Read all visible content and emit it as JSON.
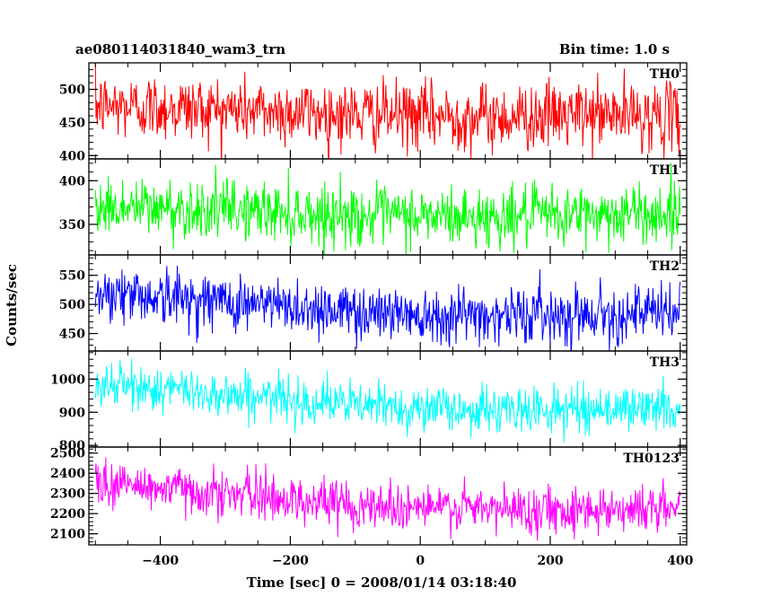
{
  "header": {
    "left_title": "ae080114031840_wam3_trn",
    "right_title": "Bin time: 1.0 s"
  },
  "chart_data": {
    "type": "line",
    "title": "ae080114031840_wam3_trn",
    "subtitle": "Bin time: 1.0 s",
    "xlabel": "Time [sec] 0 = 2008/01/14 03:18:40",
    "ylabel": "Counts/sec",
    "xlim": [
      -510,
      410
    ],
    "x_ticks": [
      -400,
      -200,
      0,
      200,
      400
    ],
    "x_tick_labels": [
      "−400",
      "−200",
      "0",
      "200",
      "400"
    ],
    "x_range_data": [
      -500,
      400
    ],
    "bin_time": 1.0,
    "grid": false,
    "panels": [
      {
        "name": "TH0",
        "color": "#ff0000",
        "ylim": [
          395,
          540
        ],
        "y_ticks": [
          400,
          450,
          500
        ],
        "y_tick_labels": [
          "400",
          "450",
          "500"
        ],
        "trend": [
          [
            -500,
            475
          ],
          [
            -300,
            470
          ],
          [
            -100,
            462
          ],
          [
            100,
            458
          ],
          [
            300,
            462
          ],
          [
            400,
            458
          ]
        ],
        "noise_sd": 25
      },
      {
        "name": "TH1",
        "color": "#00ff00",
        "ylim": [
          315,
          425
        ],
        "y_ticks": [
          350,
          400
        ],
        "y_tick_labels": [
          "350",
          "400"
        ],
        "trend": [
          [
            -500,
            370
          ],
          [
            -300,
            367
          ],
          [
            -100,
            360
          ],
          [
            100,
            358
          ],
          [
            300,
            362
          ],
          [
            400,
            362
          ]
        ],
        "noise_sd": 17
      },
      {
        "name": "TH2",
        "color": "#0000ff",
        "ylim": [
          420,
          585
        ],
        "y_ticks": [
          450,
          500,
          550
        ],
        "y_tick_labels": [
          "450",
          "500",
          "550"
        ],
        "trend": [
          [
            -500,
            522
          ],
          [
            -300,
            505
          ],
          [
            -100,
            488
          ],
          [
            100,
            482
          ],
          [
            300,
            485
          ],
          [
            400,
            484
          ]
        ],
        "noise_sd": 24
      },
      {
        "name": "TH3",
        "color": "#00ffff",
        "ylim": [
          795,
          1085
        ],
        "y_ticks": [
          800,
          900,
          1000
        ],
        "y_tick_labels": [
          "800",
          "900",
          "1000"
        ],
        "trend": [
          [
            -500,
            985
          ],
          [
            -300,
            955
          ],
          [
            -100,
            922
          ],
          [
            100,
            905
          ],
          [
            300,
            912
          ],
          [
            400,
            912
          ]
        ],
        "noise_sd": 34
      },
      {
        "name": "TH0123",
        "color": "#ff00ff",
        "ylim": [
          2045,
          2530
        ],
        "y_ticks": [
          2100,
          2200,
          2300,
          2400,
          2500
        ],
        "y_tick_labels": [
          "2100",
          "2200",
          "2300",
          "2400",
          "2500"
        ],
        "trend": [
          [
            -500,
            2355
          ],
          [
            -300,
            2300
          ],
          [
            -100,
            2245
          ],
          [
            100,
            2220
          ],
          [
            300,
            2225
          ],
          [
            400,
            2225
          ]
        ],
        "noise_sd": 58
      }
    ]
  }
}
